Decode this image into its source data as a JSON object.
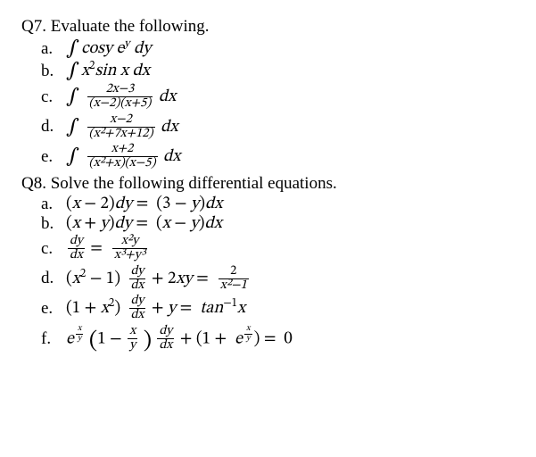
{
  "q7": {
    "heading": "Q7. Evaluate the following.",
    "items": [
      {
        "label": "a."
      },
      {
        "label": "b."
      },
      {
        "label": "c.",
        "num": "2x−3",
        "den": "(x−2)(x+5)"
      },
      {
        "label": "d.",
        "num": "x−2",
        "den": "(x²+7x+12)"
      },
      {
        "label": "e.",
        "num": "x+2",
        "den": "(x²+x)(x−5)"
      }
    ]
  },
  "q8": {
    "heading": "Q8. Solve the following differential equations.",
    "items": [
      {
        "label": "a."
      },
      {
        "label": "b."
      },
      {
        "label": "c.",
        "lnum": "dy",
        "lden": "dx",
        "rnum": "x²y",
        "rden": "x³+y³"
      },
      {
        "label": "d.",
        "dnum": "dy",
        "dden": "dx",
        "rnum": "2",
        "rden": "x²−1"
      },
      {
        "label": "e.",
        "dnum": "dy",
        "dden": "dx"
      },
      {
        "label": "f.",
        "enx": "x",
        "eny": "y",
        "pnumx": "x",
        "pnumy": "y",
        "dnum": "dy",
        "dden": "dx"
      }
    ]
  }
}
